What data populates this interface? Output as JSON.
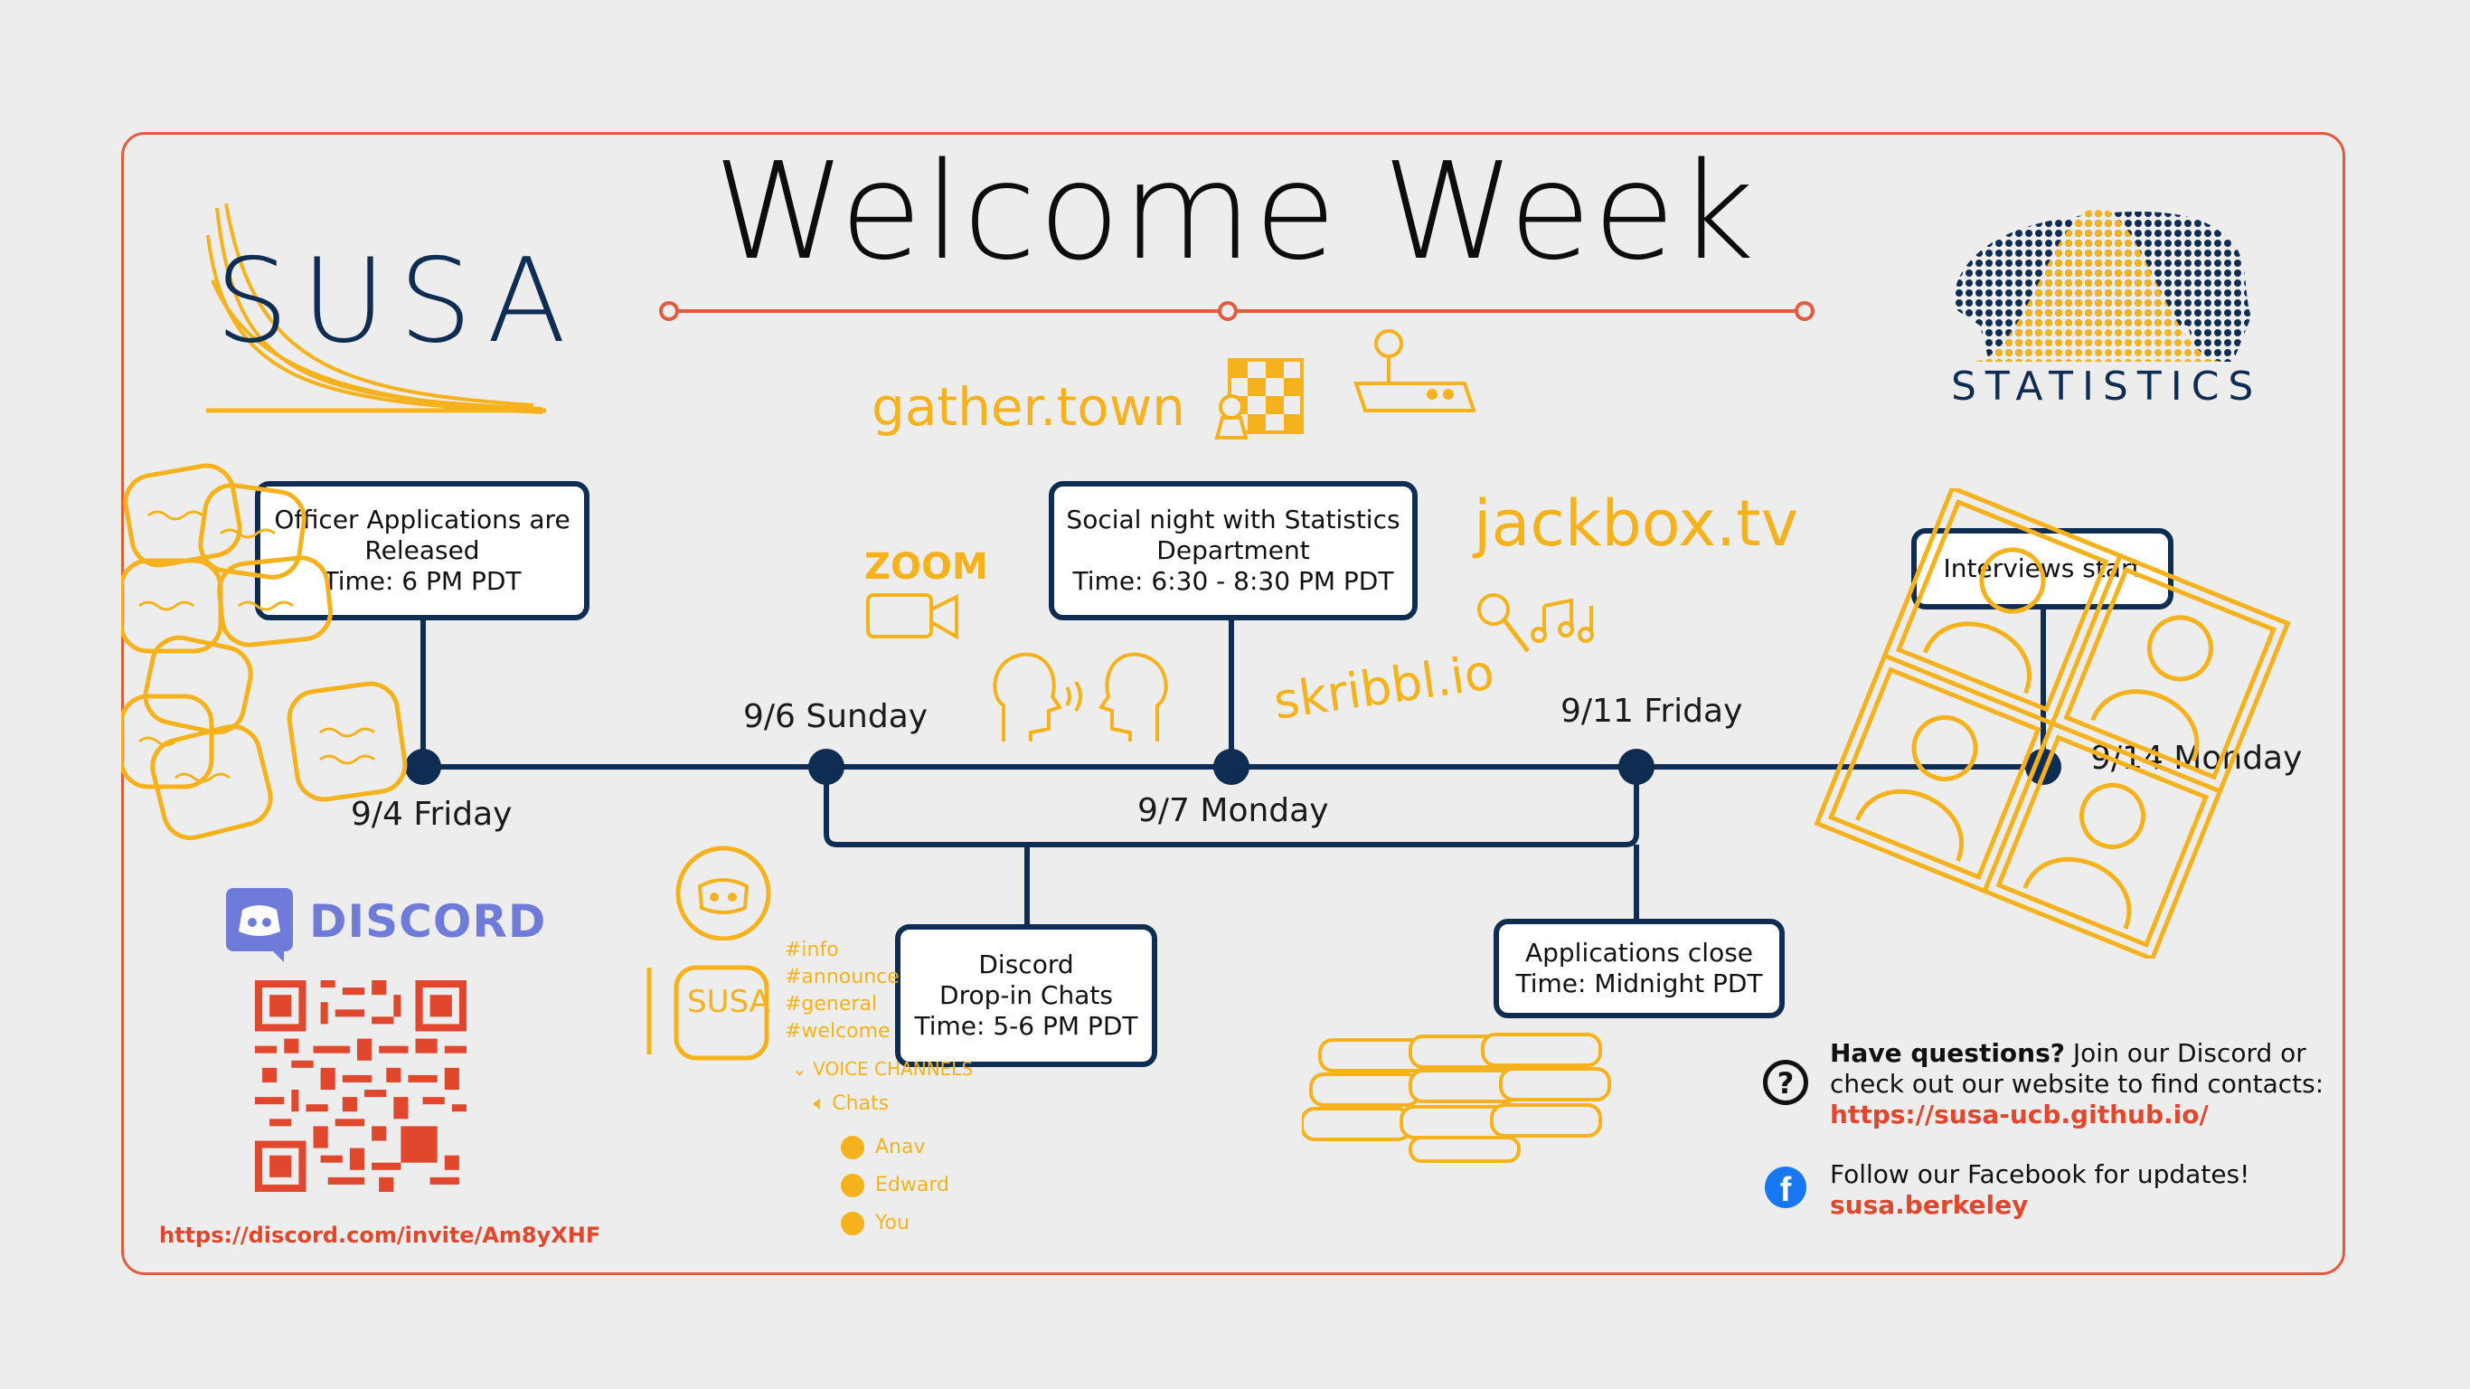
{
  "title": "Welcome Week",
  "logos": {
    "susa": "SUSA",
    "statistics": "STATISTICS",
    "discord": "DISCORD"
  },
  "doodles": {
    "gather": "gather.town",
    "zoom": "ZOOM",
    "jackbox": "jackbox.tv",
    "skribbl": "skribbl.io",
    "channels": [
      "#info",
      "#announce",
      "#general",
      "#welcome"
    ],
    "voice_header": "VOICE CHANNELS",
    "voice_room": "Chats",
    "members": [
      "Anav",
      "Edward",
      "You"
    ],
    "server_icon": "SUSA"
  },
  "timeline": {
    "dates": [
      "9/4 Friday",
      "9/6 Sunday",
      "9/7 Monday",
      "9/11 Friday",
      "9/14 Monday"
    ],
    "events": [
      {
        "lines": [
          "Officer Applications are",
          "Released",
          "Time: 6 PM PDT"
        ]
      },
      {
        "lines": [
          "Social night with Statistics",
          "Department",
          "Time: 6:30 - 8:30 PM PDT"
        ]
      },
      {
        "lines": [
          "Interviews start"
        ]
      },
      {
        "lines": [
          "Discord",
          "Drop-in Chats",
          "Time: 5-6 PM PDT"
        ]
      },
      {
        "lines": [
          "Applications close",
          "Time: Midnight PDT"
        ]
      }
    ]
  },
  "info": {
    "questions_bold": "Have questions?",
    "questions_text": " Join our Discord or",
    "questions_line2": "check out our website to find contacts:",
    "website": "https://susa-ucb.github.io/",
    "facebook_text": "Follow our Facebook for updates!",
    "facebook_handle": "susa.berkeley"
  },
  "discord_invite": "https://discord.com/invite/Am8yXHF",
  "colors": {
    "navy": "#0f2d52",
    "accent_red": "#e35a3e",
    "doodle_yellow": "#f6b21c",
    "discord_blurple": "#6f7bd9"
  }
}
